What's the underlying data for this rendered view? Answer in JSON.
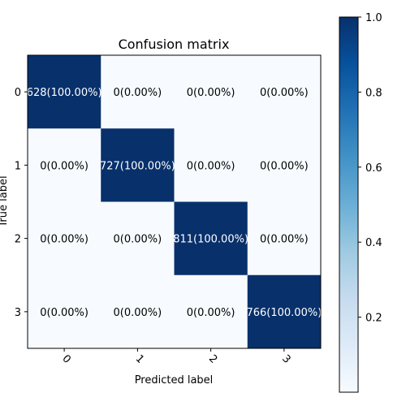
{
  "chart_data": {
    "type": "heatmap",
    "title": "Confusion matrix",
    "xlabel": "Predicted label",
    "ylabel": "True label",
    "x_categories": [
      "0",
      "1",
      "2",
      "3"
    ],
    "y_categories": [
      "0",
      "1",
      "2",
      "3"
    ],
    "values": [
      [
        1.0,
        0.0,
        0.0,
        0.0
      ],
      [
        0.0,
        1.0,
        0.0,
        0.0
      ],
      [
        0.0,
        0.0,
        1.0,
        0.0
      ],
      [
        0.0,
        0.0,
        0.0,
        1.0
      ]
    ],
    "cell_labels": [
      [
        "628(100.00%)",
        "0(0.00%)",
        "0(0.00%)",
        "0(0.00%)"
      ],
      [
        "0(0.00%)",
        "727(100.00%)",
        "0(0.00%)",
        "0(0.00%)"
      ],
      [
        "0(0.00%)",
        "0(0.00%)",
        "811(100.00%)",
        "0(0.00%)"
      ],
      [
        "0(0.00%)",
        "0(0.00%)",
        "0(0.00%)",
        "766(100.00%)"
      ]
    ],
    "colormap": "Blues",
    "color_low": "#f7fbff",
    "color_high": "#08306b",
    "colorbar": {
      "range": [
        0,
        1.0
      ],
      "ticks": [
        "0.2",
        "0.4",
        "0.6",
        "0.8",
        "1.0"
      ],
      "tick_values": [
        0.2,
        0.4,
        0.6,
        0.8,
        1.0
      ]
    },
    "grid": false
  }
}
